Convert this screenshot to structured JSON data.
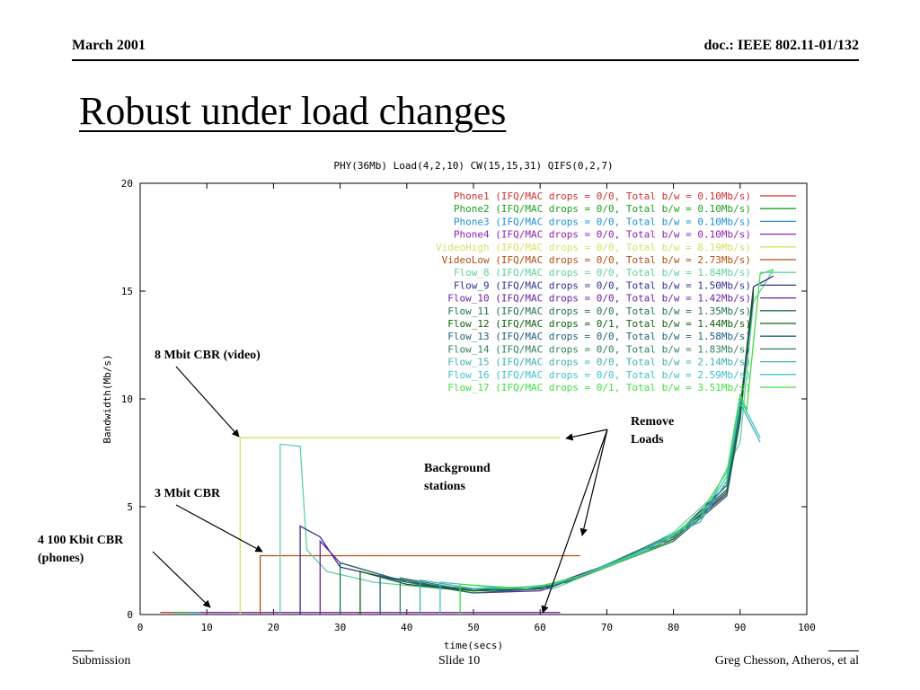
{
  "header": {
    "left": "March  2001",
    "right": "doc.: IEEE 802.11-01/132"
  },
  "slide_title": "Robust under load changes",
  "footer": {
    "left": "Submission",
    "center": "Slide 10",
    "right": "Greg Chesson, Atheros, et al"
  },
  "annotations": [
    {
      "name": "annotation-8mbit-video",
      "lines": [
        "8 Mbit CBR (video)"
      ]
    },
    {
      "name": "annotation-3mbit",
      "lines": [
        "3 Mbit CBR"
      ]
    },
    {
      "name": "annotation-phones",
      "lines": [
        "4 100 Kbit CBR",
        "(phones)"
      ]
    },
    {
      "name": "annotation-background",
      "lines": [
        "Background",
        "stations"
      ]
    },
    {
      "name": "annotation-remove-loads",
      "lines": [
        "Remove",
        "Loads"
      ]
    }
  ],
  "chart_data": {
    "type": "line",
    "title": "PHY(36Mb) Load(4,2,10) CW(15,15,31) QIFS(0,2,7)",
    "xlabel": "time(secs)",
    "ylabel": "Bandwidth(Mb/s)",
    "xlim": [
      0,
      100
    ],
    "ylim": [
      0,
      20
    ],
    "xticks": [
      0,
      10,
      20,
      30,
      40,
      50,
      60,
      70,
      80,
      90,
      100
    ],
    "yticks": [
      0,
      5,
      10,
      15,
      20
    ],
    "grid": false,
    "legend_position": "top-right",
    "series": [
      {
        "name": "Phone1 (IFQ/MAC drops = 0/0, Total b/w = 0.10Mb/s)",
        "color": "#d03030",
        "points": [
          [
            3,
            0.1
          ],
          [
            63,
            0.1
          ]
        ]
      },
      {
        "name": "Phone2 (IFQ/MAC drops = 0/0, Total b/w = 0.10Mb/s)",
        "color": "#20a020",
        "points": [
          [
            5,
            0.1
          ],
          [
            63,
            0.1
          ]
        ]
      },
      {
        "name": "Phone3 (IFQ/MAC drops = 0/0, Total b/w = 0.10Mb/s)",
        "color": "#2090d0",
        "points": [
          [
            7,
            0.1
          ],
          [
            63,
            0.1
          ]
        ]
      },
      {
        "name": "Phone4 (IFQ/MAC drops = 0/0, Total b/w = 0.10Mb/s)",
        "color": "#9020b0",
        "points": [
          [
            9,
            0.1
          ],
          [
            63,
            0.1
          ]
        ]
      },
      {
        "name": "VideoHigh (IFQ/MAC drops = 0/0, Total b/w = 8.19Mb/s)",
        "color": "#d8e060",
        "points": [
          [
            15,
            0
          ],
          [
            15,
            8.2
          ],
          [
            63,
            8.2
          ]
        ]
      },
      {
        "name": "VideoLow (IFQ/MAC drops = 0/0, Total b/w = 2.73Mb/s)",
        "color": "#b05010",
        "points": [
          [
            18,
            0
          ],
          [
            18,
            2.73
          ],
          [
            66,
            2.73
          ]
        ]
      },
      {
        "name": "Flow_8 (IFQ/MAC drops = 0/0, Total b/w = 1.84Mb/s)",
        "color": "#60d0a0",
        "points": [
          [
            21,
            0
          ],
          [
            21,
            7.9
          ],
          [
            24,
            7.8
          ],
          [
            25,
            3
          ],
          [
            28,
            2
          ],
          [
            35,
            1.5
          ],
          [
            45,
            1.2
          ],
          [
            55,
            1.1
          ],
          [
            62,
            1.2
          ],
          [
            70,
            2.2
          ],
          [
            80,
            3.8
          ],
          [
            86,
            5.5
          ],
          [
            90,
            8
          ],
          [
            92,
            14.5
          ],
          [
            95,
            16
          ]
        ]
      },
      {
        "name": "Flow_9 (IFQ/MAC drops = 0/0, Total b/w = 1.50Mb/s)",
        "color": "#303090",
        "points": [
          [
            24,
            0
          ],
          [
            24,
            4.1
          ],
          [
            27,
            3.6
          ],
          [
            30,
            2.2
          ],
          [
            40,
            1.5
          ],
          [
            50,
            1.1
          ],
          [
            60,
            1.2
          ],
          [
            70,
            2.3
          ],
          [
            80,
            3.6
          ],
          [
            88,
            6
          ],
          [
            90,
            9.5
          ],
          [
            92,
            15.2
          ],
          [
            95,
            15.7
          ]
        ]
      },
      {
        "name": "Flow_10 (IFQ/MAC drops = 0/0, Total b/w = 1.42Mb/s)",
        "color": "#7020a0",
        "points": [
          [
            27,
            0
          ],
          [
            27,
            3.4
          ],
          [
            30,
            2.4
          ],
          [
            40,
            1.5
          ],
          [
            50,
            1.0
          ],
          [
            60,
            1.1
          ],
          [
            70,
            2.2
          ],
          [
            80,
            3.5
          ],
          [
            88,
            5.6
          ],
          [
            90,
            9.2
          ],
          [
            92,
            14.8
          ]
        ]
      },
      {
        "name": "Flow_11 (IFQ/MAC drops = 0/0, Total b/w = 1.35Mb/s)",
        "color": "#207060",
        "points": [
          [
            30,
            0
          ],
          [
            30,
            2.4
          ],
          [
            40,
            1.5
          ],
          [
            50,
            1.0
          ],
          [
            60,
            1.2
          ],
          [
            70,
            2.2
          ],
          [
            80,
            3.4
          ],
          [
            88,
            5.5
          ],
          [
            90,
            9.0
          ],
          [
            92,
            15
          ]
        ]
      },
      {
        "name": "Flow_12 (IFQ/MAC drops = 0/1, Total b/w = 1.44Mb/s)",
        "color": "#106010",
        "points": [
          [
            33,
            0
          ],
          [
            33,
            2.0
          ],
          [
            40,
            1.4
          ],
          [
            50,
            1.1
          ],
          [
            60,
            1.2
          ],
          [
            70,
            2.2
          ],
          [
            80,
            3.5
          ],
          [
            88,
            5.7
          ],
          [
            90,
            9.3
          ],
          [
            92,
            15.1
          ]
        ]
      },
      {
        "name": "Flow_13 (IFQ/MAC drops = 0/0, Total b/w = 1.58Mb/s)",
        "color": "#206080",
        "points": [
          [
            36,
            0
          ],
          [
            36,
            1.8
          ],
          [
            45,
            1.3
          ],
          [
            55,
            1.1
          ],
          [
            62,
            1.3
          ],
          [
            70,
            2.3
          ],
          [
            80,
            3.6
          ],
          [
            88,
            5.8
          ],
          [
            90,
            9.4
          ]
        ]
      },
      {
        "name": "Flow_14 (IFQ/MAC drops = 0/0, Total b/w = 1.83Mb/s)",
        "color": "#308060",
        "points": [
          [
            39,
            0
          ],
          [
            39,
            1.7
          ],
          [
            48,
            1.2
          ],
          [
            58,
            1.2
          ],
          [
            64,
            1.5
          ],
          [
            72,
            2.6
          ],
          [
            82,
            4.0
          ],
          [
            88,
            6.0
          ],
          [
            90,
            9.6
          ]
        ]
      },
      {
        "name": "Flow_15 (IFQ/MAC drops = 0/0, Total b/w = 2.14Mb/s)",
        "color": "#40b0b0",
        "points": [
          [
            42,
            0
          ],
          [
            42,
            1.6
          ],
          [
            50,
            1.2
          ],
          [
            60,
            1.3
          ],
          [
            66,
            1.8
          ],
          [
            74,
            2.8
          ],
          [
            84,
            4.3
          ],
          [
            88,
            6.2
          ],
          [
            90,
            9.8
          ],
          [
            93,
            8.0
          ]
        ]
      },
      {
        "name": "Flow_16 (IFQ/MAC drops = 0/0, Total b/w = 2.59Mb/s)",
        "color": "#40c0d0",
        "points": [
          [
            45,
            0
          ],
          [
            45,
            1.5
          ],
          [
            55,
            1.2
          ],
          [
            62,
            1.4
          ],
          [
            68,
            2.0
          ],
          [
            76,
            3.0
          ],
          [
            84,
            4.5
          ],
          [
            88,
            6.4
          ],
          [
            90,
            10.0
          ],
          [
            93,
            8.2
          ]
        ]
      },
      {
        "name": "Flow_17 (IFQ/MAC drops = 0/1, Total b/w = 3.51Mb/s)",
        "color": "#40e040",
        "points": [
          [
            48,
            0
          ],
          [
            48,
            1.4
          ],
          [
            58,
            1.2
          ],
          [
            64,
            1.6
          ],
          [
            70,
            2.2
          ],
          [
            78,
            3.2
          ],
          [
            84,
            4.7
          ],
          [
            88,
            6.6
          ],
          [
            90,
            10.2
          ],
          [
            91,
            9.5
          ],
          [
            93,
            15.8
          ],
          [
            95,
            16
          ]
        ]
      }
    ]
  }
}
